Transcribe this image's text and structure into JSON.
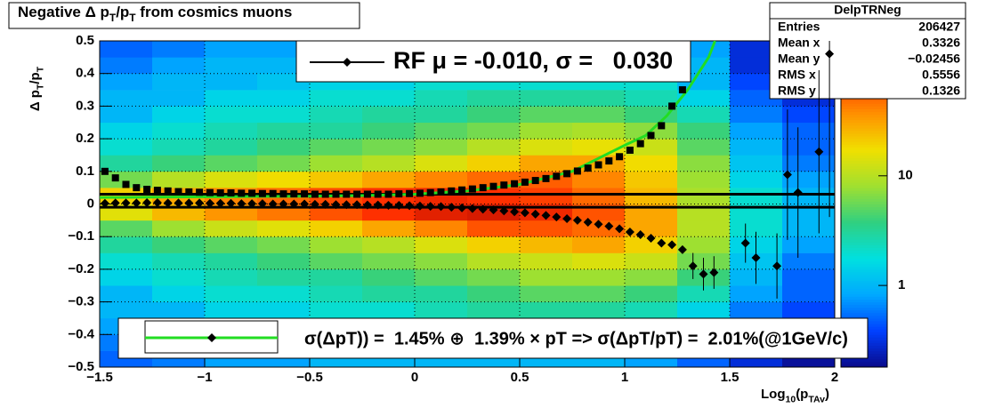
{
  "chart_data": {
    "type": "colz-profile",
    "title": [
      {
        "text": "Negative Δ p"
      },
      {
        "text": "T",
        "sub": true
      },
      {
        "text": "/p"
      },
      {
        "text": "T",
        "sub": true
      },
      {
        "text": " from cosmics muons"
      }
    ],
    "xlabel": [
      {
        "text": "Log"
      },
      {
        "text": "10",
        "sub": true
      },
      {
        "text": "(p"
      },
      {
        "text": "TAv",
        "sub": true
      },
      {
        "text": ")"
      }
    ],
    "ylabel": [
      {
        "text": "Δ p"
      },
      {
        "text": "T",
        "sub": true
      },
      {
        "text": "/p"
      },
      {
        "text": "T",
        "sub": true
      }
    ],
    "xlim": [
      -1.5,
      2
    ],
    "ylim": [
      -0.5,
      0.5
    ],
    "xticks": [
      {
        "value": -1.5,
        "label": "−1.5"
      },
      {
        "value": -1,
        "label": "−1"
      },
      {
        "value": -0.5,
        "label": "−0.5"
      },
      0,
      0.5,
      1,
      1.5,
      2
    ],
    "yticks": [
      {
        "value": -0.5,
        "label": "−0.5"
      },
      {
        "value": -0.4,
        "label": "−0.4"
      },
      {
        "value": -0.3,
        "label": "−0.3"
      },
      {
        "value": -0.2,
        "label": "−0.2"
      },
      {
        "value": -0.1,
        "label": "−0.1"
      },
      0,
      0.1,
      0.2,
      0.3,
      0.4,
      0.5
    ],
    "grid": true,
    "heatmap": {
      "xbins": [
        -1.5,
        -1.25,
        -1,
        -0.75,
        -0.5,
        -0.25,
        0,
        0.25,
        0.5,
        0.75,
        1,
        1.25,
        1.5,
        1.75,
        2
      ],
      "ybins": [
        -0.5,
        -0.45,
        -0.4,
        -0.35,
        -0.3,
        -0.25,
        -0.2,
        -0.15,
        -0.1,
        -0.05,
        0,
        0.05,
        0.1,
        0.15,
        0.2,
        0.25,
        0.3,
        0.35,
        0.4,
        0.45,
        0.5
      ],
      "z": [
        [
          0.5,
          0.6,
          0.8,
          1,
          1,
          1.5,
          2,
          3,
          5,
          15,
          20,
          6,
          3,
          2,
          1.5,
          1,
          1,
          0.8,
          0.6,
          0.5
        ],
        [
          0.6,
          0.8,
          1,
          1,
          1.5,
          2,
          2.5,
          4,
          8,
          25,
          30,
          10,
          4,
          2.5,
          2,
          1.5,
          1,
          1,
          0.8,
          0.6
        ],
        [
          0.8,
          1,
          1,
          1.5,
          2,
          2.5,
          3,
          5,
          12,
          35,
          40,
          14,
          5,
          3,
          2.5,
          2,
          1.5,
          1,
          1,
          0.8
        ],
        [
          0.8,
          1,
          1.2,
          1.5,
          2,
          3,
          4,
          6,
          15,
          45,
          50,
          18,
          6,
          4,
          3,
          2,
          1.5,
          1.2,
          1,
          0.8
        ],
        [
          1,
          1,
          1.5,
          2,
          2.5,
          3,
          5,
          8,
          20,
          60,
          65,
          22,
          8,
          5,
          3,
          2.5,
          2,
          1.5,
          1,
          1
        ],
        [
          1,
          1.2,
          1.5,
          2,
          3,
          4,
          6,
          10,
          30,
          80,
          80,
          30,
          10,
          6,
          4,
          3,
          2,
          1.5,
          1.2,
          1
        ],
        [
          1,
          1.5,
          2,
          2.5,
          3,
          5,
          7,
          14,
          40,
          100,
          90,
          40,
          14,
          7,
          5,
          3,
          2.5,
          2,
          1.5,
          1
        ],
        [
          1,
          1.5,
          2,
          3,
          4,
          6,
          10,
          20,
          60,
          110,
          80,
          50,
          20,
          10,
          6,
          4,
          3,
          2,
          1.5,
          1
        ],
        [
          1,
          1.5,
          2,
          3,
          5,
          8,
          12,
          25,
          60,
          90,
          70,
          55,
          30,
          14,
          8,
          5,
          3,
          2,
          1.5,
          1
        ],
        [
          1,
          1.5,
          2,
          3,
          5,
          8,
          14,
          30,
          50,
          60,
          50,
          40,
          30,
          16,
          9,
          5,
          3,
          2,
          1.5,
          1
        ],
        [
          0.8,
          1,
          1.5,
          2.5,
          4,
          7,
          12,
          20,
          30,
          30,
          25,
          22,
          18,
          12,
          7,
          4,
          2.5,
          2,
          1.5,
          1
        ],
        [
          0.5,
          0.8,
          1,
          1.5,
          2.5,
          4,
          6,
          8,
          10,
          10,
          9,
          8,
          7,
          5,
          4,
          2.5,
          1.5,
          1,
          1,
          0.8
        ],
        [
          0.3,
          0.4,
          0.5,
          0.6,
          0.8,
          1,
          1.2,
          1.5,
          2,
          2,
          2,
          1.5,
          1.2,
          1,
          0.8,
          0.6,
          0.5,
          0.4,
          0.3,
          0.3
        ],
        [
          0.2,
          0.3,
          0.3,
          0.4,
          0.5,
          0.5,
          0.6,
          0.8,
          1,
          1,
          1,
          0.8,
          0.6,
          0.5,
          0.5,
          0.4,
          0.3,
          0.3,
          0.2,
          0.2
        ]
      ],
      "zlim": [
        0.18,
        170
      ],
      "zticks": [
        1,
        10
      ],
      "zlog": true,
      "palette": [
        "#0a0a8a",
        "#0040ff",
        "#00a8ff",
        "#00e0e0",
        "#30d080",
        "#a0e030",
        "#f0e000",
        "#ff9000",
        "#ff3000",
        "#a00000"
      ]
    },
    "profile": {
      "color": "#000000",
      "x": [
        -1.475,
        -1.425,
        -1.375,
        -1.325,
        -1.275,
        -1.225,
        -1.175,
        -1.125,
        -1.075,
        -1.025,
        -0.975,
        -0.925,
        -0.875,
        -0.825,
        -0.775,
        -0.725,
        -0.675,
        -0.625,
        -0.575,
        -0.525,
        -0.475,
        -0.425,
        -0.375,
        -0.325,
        -0.275,
        -0.225,
        -0.175,
        -0.125,
        -0.075,
        -0.025,
        0.025,
        0.075,
        0.125,
        0.175,
        0.225,
        0.275,
        0.325,
        0.375,
        0.425,
        0.475,
        0.525,
        0.575,
        0.625,
        0.675,
        0.725,
        0.775,
        0.825,
        0.875,
        0.925,
        0.975,
        1.025,
        1.075,
        1.125,
        1.175,
        1.225,
        1.275,
        1.325,
        1.375,
        1.425,
        1.575,
        1.625,
        1.725,
        1.775,
        1.825,
        1.925,
        1.975
      ],
      "values": [
        0.002,
        0.003,
        0.003,
        0.003,
        0.004,
        0.004,
        0.003,
        0.003,
        0.003,
        0.003,
        0.002,
        0.002,
        0.002,
        0.001,
        0.001,
        0.001,
        0.0,
        0.0,
        0.0,
        0.0,
        -0.001,
        -0.001,
        -0.002,
        -0.002,
        -0.002,
        -0.003,
        -0.003,
        -0.004,
        -0.004,
        -0.005,
        -0.006,
        -0.007,
        -0.008,
        -0.01,
        -0.012,
        -0.014,
        -0.016,
        -0.018,
        -0.021,
        -0.024,
        -0.027,
        -0.031,
        -0.035,
        -0.04,
        -0.045,
        -0.05,
        -0.056,
        -0.062,
        -0.068,
        -0.076,
        -0.086,
        -0.094,
        -0.105,
        -0.12,
        -0.125,
        -0.14,
        -0.19,
        -0.215,
        -0.21,
        -0.12,
        -0.165,
        -0.19,
        0.09,
        0.035,
        0.16,
        0.46
      ],
      "errors": [
        0.002,
        0.002,
        0.002,
        0.002,
        0.002,
        0.002,
        0.002,
        0.002,
        0.002,
        0.002,
        0.002,
        0.002,
        0.002,
        0.002,
        0.002,
        0.002,
        0.002,
        0.002,
        0.002,
        0.002,
        0.002,
        0.002,
        0.002,
        0.002,
        0.002,
        0.002,
        0.002,
        0.002,
        0.002,
        0.002,
        0.002,
        0.002,
        0.002,
        0.002,
        0.002,
        0.002,
        0.002,
        0.002,
        0.002,
        0.002,
        0.004,
        0.004,
        0.004,
        0.004,
        0.004,
        0.004,
        0.004,
        0.004,
        0.004,
        0.004,
        0.008,
        0.008,
        0.008,
        0.008,
        0.008,
        0.008,
        0.04,
        0.05,
        0.05,
        0.06,
        0.08,
        0.1,
        0.2,
        0.2,
        0.25,
        0.5
      ]
    },
    "rms": {
      "color": "#000000",
      "x": [
        -1.475,
        -1.425,
        -1.375,
        -1.325,
        -1.275,
        -1.225,
        -1.175,
        -1.125,
        -1.075,
        -1.025,
        -0.975,
        -0.925,
        -0.875,
        -0.825,
        -0.775,
        -0.725,
        -0.675,
        -0.625,
        -0.575,
        -0.525,
        -0.475,
        -0.425,
        -0.375,
        -0.325,
        -0.275,
        -0.225,
        -0.175,
        -0.125,
        -0.075,
        -0.025,
        0.025,
        0.075,
        0.125,
        0.175,
        0.225,
        0.275,
        0.325,
        0.375,
        0.425,
        0.475,
        0.525,
        0.575,
        0.625,
        0.675,
        0.725,
        0.775,
        0.825,
        0.875,
        0.925,
        0.975,
        1.025,
        1.075,
        1.125,
        1.175,
        1.225,
        1.275
      ],
      "values": [
        0.1,
        0.08,
        0.06,
        0.05,
        0.045,
        0.042,
        0.04,
        0.038,
        0.037,
        0.036,
        0.035,
        0.034,
        0.034,
        0.033,
        0.033,
        0.032,
        0.032,
        0.031,
        0.031,
        0.031,
        0.03,
        0.03,
        0.03,
        0.03,
        0.03,
        0.03,
        0.03,
        0.03,
        0.031,
        0.032,
        0.033,
        0.035,
        0.037,
        0.04,
        0.043,
        0.046,
        0.05,
        0.054,
        0.058,
        0.062,
        0.067,
        0.072,
        0.078,
        0.085,
        0.093,
        0.101,
        0.11,
        0.12,
        0.132,
        0.145,
        0.165,
        0.185,
        0.21,
        0.24,
        0.3,
        0.35
      ]
    },
    "fit": {
      "color": "#22dd22",
      "x": [
        -1.5,
        -1.25,
        -1,
        -0.75,
        -0.5,
        -0.25,
        0,
        0.25,
        0.5,
        0.75,
        1,
        1.1,
        1.2,
        1.3,
        1.4,
        1.43
      ],
      "values": [
        0.02,
        0.021,
        0.022,
        0.023,
        0.024,
        0.026,
        0.03,
        0.04,
        0.06,
        0.1,
        0.18,
        0.21,
        0.27,
        0.35,
        0.45,
        0.5
      ]
    },
    "hlines": [
      0.03,
      -0.01
    ],
    "legends": [
      {
        "text": "RF μ = -0.010, σ =   0.030"
      },
      {
        "text": "σ(ΔpT)) =  1.45% ⊕  1.39% × pT => σ(ΔpT/pT) =  2.01%(@1GeV/c)"
      }
    ],
    "stats": {
      "title": "DelpTRNeg",
      "rows": [
        [
          "Entries",
          "206427"
        ],
        [
          "Mean x",
          "0.3326"
        ],
        [
          "Mean y",
          "−0.02456"
        ],
        [
          "RMS x",
          "0.5556"
        ],
        [
          "RMS y",
          "0.1326"
        ]
      ]
    }
  }
}
